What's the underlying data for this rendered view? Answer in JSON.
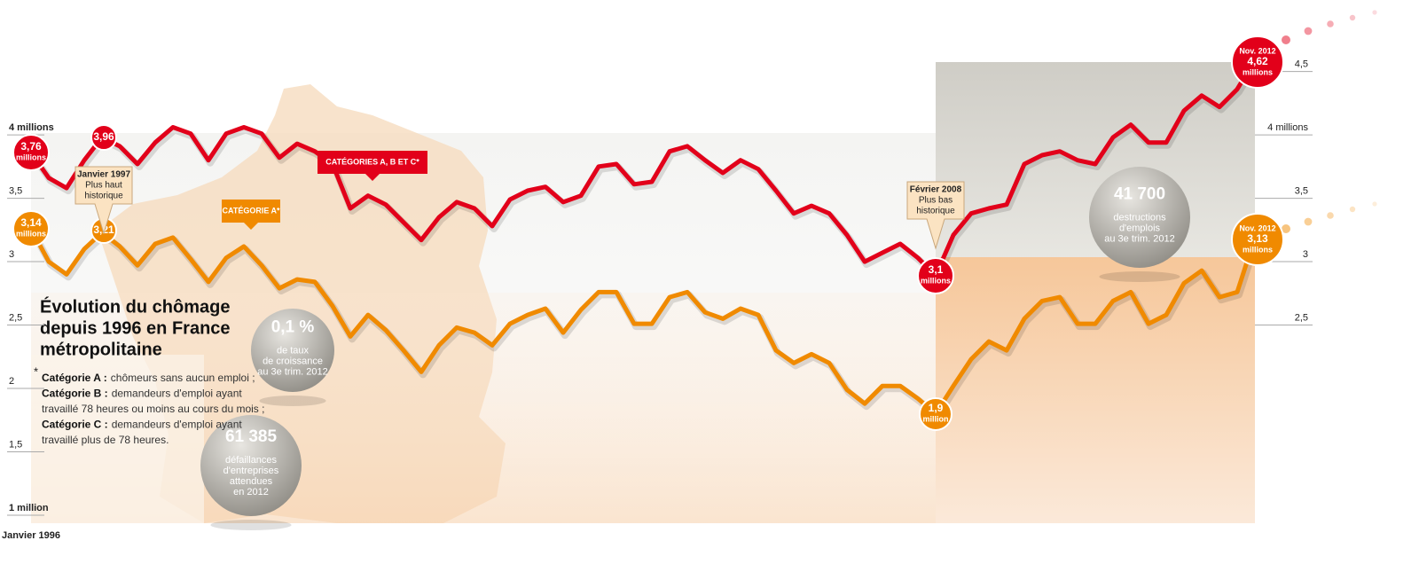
{
  "chart_data": {
    "type": "line",
    "title": [
      "Évolution du chômage",
      "depuis 1996 en France",
      "métropolitaine"
    ],
    "categories": [
      "Janvier 1996",
      null,
      null,
      null,
      null,
      null,
      null,
      null,
      null,
      null,
      null,
      null,
      null,
      null,
      null,
      null,
      null,
      null,
      null,
      null,
      null,
      null,
      null,
      null,
      null,
      null,
      null,
      null,
      null,
      null,
      null,
      null,
      null,
      null,
      null,
      null,
      null,
      null,
      null,
      null,
      null,
      null,
      null,
      null,
      null,
      null,
      null,
      null,
      null,
      null,
      null,
      null,
      null,
      null,
      null,
      null,
      null,
      null,
      null,
      null,
      null,
      null,
      null,
      null,
      null,
      null,
      null,
      null,
      null,
      null
    ],
    "series": [
      {
        "name": "CATÉGORIES A, B ET C*",
        "color": "#e2001a",
        "values": [
          3.86,
          3.66,
          3.58,
          3.8,
          3.98,
          3.91,
          3.77,
          3.94,
          4.06,
          4.01,
          3.8,
          4.01,
          4.06,
          4.01,
          3.82,
          3.93,
          3.87,
          3.77,
          3.42,
          3.52,
          3.45,
          3.31,
          3.17,
          3.35,
          3.47,
          3.42,
          3.28,
          3.49,
          3.56,
          3.59,
          3.47,
          3.52,
          3.75,
          3.77,
          3.61,
          3.63,
          3.87,
          3.91,
          3.8,
          3.7,
          3.8,
          3.73,
          3.56,
          3.38,
          3.44,
          3.38,
          3.21,
          3.0,
          3.07,
          3.14,
          3.03,
          2.89,
          3.21,
          3.38,
          3.42,
          3.45,
          3.77,
          3.84,
          3.87,
          3.8,
          3.77,
          3.98,
          4.08,
          3.94,
          3.94,
          4.19,
          4.31,
          4.22,
          4.36,
          4.59
        ]
      },
      {
        "name": "CATÉGORIE A*",
        "color": "#f08a00",
        "values": [
          3.26,
          3.0,
          2.9,
          3.1,
          3.23,
          3.12,
          2.97,
          3.14,
          3.19,
          3.02,
          2.84,
          3.03,
          3.12,
          2.97,
          2.79,
          2.86,
          2.84,
          2.65,
          2.41,
          2.58,
          2.46,
          2.3,
          2.13,
          2.34,
          2.48,
          2.44,
          2.34,
          2.51,
          2.58,
          2.63,
          2.44,
          2.62,
          2.76,
          2.76,
          2.51,
          2.51,
          2.72,
          2.76,
          2.6,
          2.55,
          2.63,
          2.58,
          2.3,
          2.2,
          2.27,
          2.2,
          1.99,
          1.88,
          2.02,
          2.02,
          1.92,
          1.8,
          2.02,
          2.23,
          2.37,
          2.3,
          2.55,
          2.69,
          2.72,
          2.51,
          2.51,
          2.69,
          2.76,
          2.51,
          2.58,
          2.83,
          2.93,
          2.72,
          2.76,
          3.19
        ]
      }
    ],
    "ylim": [
      1,
      4.7
    ],
    "yticks": [
      {
        "value": 1,
        "label": "1 million"
      },
      {
        "value": 1.5,
        "label": "1,5"
      },
      2,
      {
        "value": 2.5,
        "label": "2,5"
      },
      3,
      {
        "value": 3.5,
        "label": "3,5"
      },
      {
        "value": 4,
        "label": "4 millions"
      }
    ],
    "y2lim": [
      1,
      4.7
    ],
    "y2ticks": [
      {
        "value": 2.5,
        "label": "2,5"
      },
      3,
      {
        "value": 3.5,
        "label": "3,5"
      },
      {
        "value": 4,
        "label": "4 millions"
      },
      {
        "value": 4.5,
        "label": "4,5"
      }
    ],
    "annotations": [
      {
        "lines": [
          "3,76",
          "millions"
        ]
      },
      {
        "lines": [
          "3,96"
        ]
      },
      {
        "lines": [
          "3,14",
          "millions"
        ]
      },
      {
        "lines": [
          "3,21"
        ]
      },
      {
        "lines": [
          "3,1",
          "millions"
        ]
      },
      {
        "lines": [
          "1,9",
          "million"
        ]
      },
      {
        "lines": [
          "Nov. 2012",
          "4,62",
          "millions"
        ]
      },
      {
        "lines": [
          "Nov. 2012",
          "3,13",
          "millions"
        ]
      },
      {
        "lines": [
          "Janvier 1997",
          "Plus haut",
          "historique"
        ]
      },
      {
        "lines": [
          "Février 2008",
          "Plus bas",
          "historique"
        ]
      }
    ],
    "stats": [
      {
        "lines": [
          "0,1 %",
          "de taux",
          "de croissance",
          "au 3e trim. 2012"
        ]
      },
      {
        "lines": [
          "61 385",
          "défaillances",
          "d'entreprises",
          "attendues",
          "en 2012"
        ]
      },
      {
        "lines": [
          "41 700",
          "destructions",
          "d'emplois",
          "au 3e trim. 2012"
        ]
      }
    ],
    "footnote": {
      "marker": "*",
      "lines": [
        {
          "term": "Catégorie A :",
          "text": "chômeurs sans aucun emploi ;"
        },
        {
          "term": "Catégorie B :",
          "text": "demandeurs d'emploi ayant"
        },
        {
          "text": "travaillé 78 heures ou moins au cours du mois ;"
        },
        {
          "term": "Catégorie C :",
          "text": "demandeurs d'emploi ayant"
        },
        {
          "text": "travaillé plus de 78 heures."
        }
      ]
    }
  }
}
